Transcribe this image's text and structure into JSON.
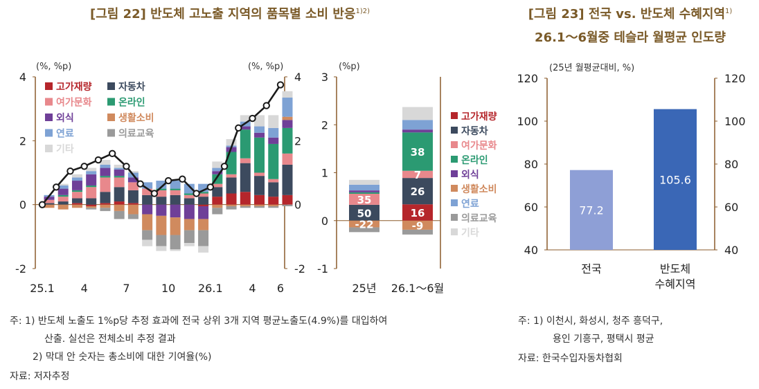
{
  "titles": {
    "fig22_main": "[그림 22] 반도체 고노출 지역의 품목별 소비 반응",
    "fig22_sup": "1)2)",
    "fig23_line1": "[그림 23] 전국 vs. 반도체 수혜지역",
    "fig23_sup": "1)",
    "fig23_line2": "26.1～6월중 테슬라 월평균 인도량"
  },
  "colors": {
    "고가재량": "#b5262b",
    "자동차": "#3c4a5e",
    "여가문화": "#e8888c",
    "온라인": "#2b9a72",
    "외식": "#6f3f98",
    "생활소비": "#d08a5e",
    "연료": "#7ea2d4",
    "의료교육": "#9a9a9a",
    "기타": "#d8d8d8",
    "line": "#1a1a1a",
    "national": "#8e9fd6",
    "semiconductor": "#3a67b6",
    "axis": "#8a5a2a"
  },
  "chart_data": [
    {
      "id": "fig22-left",
      "type": "bar",
      "stacked": true,
      "unit_left": "(%, %p)",
      "unit_right": "(%, %p)",
      "ylim": [
        -2,
        4
      ],
      "yticks": [
        "-2",
        "0",
        "2",
        "4"
      ],
      "xlabels": [
        "25.1",
        "4",
        "7",
        "10",
        "26.1",
        "4",
        "6"
      ],
      "categories": [
        "25.1",
        "25.2",
        "25.3",
        "25.4",
        "25.5",
        "25.6",
        "25.7",
        "25.8",
        "25.9",
        "25.10",
        "25.11",
        "25.12",
        "26.1",
        "26.2",
        "26.3",
        "26.4",
        "26.5",
        "26.6"
      ],
      "series": [
        {
          "name": "고가재량",
          "values": [
            0.0,
            0.0,
            0.05,
            -0.05,
            0.05,
            0.1,
            0.05,
            0.0,
            0.0,
            0.0,
            0.0,
            -0.05,
            0.25,
            0.35,
            0.4,
            0.3,
            0.25,
            0.3
          ]
        },
        {
          "name": "자동차",
          "values": [
            0.05,
            0.1,
            0.15,
            0.2,
            0.35,
            0.45,
            0.4,
            0.3,
            0.25,
            0.3,
            0.2,
            0.25,
            0.3,
            0.5,
            0.9,
            0.6,
            0.45,
            0.95
          ]
        },
        {
          "name": "여가문화",
          "values": [
            0.1,
            0.15,
            0.2,
            0.35,
            0.45,
            0.3,
            0.25,
            0.2,
            0.2,
            0.15,
            0.1,
            0.1,
            0.1,
            0.1,
            0.15,
            0.1,
            0.1,
            0.35
          ]
        },
        {
          "name": "온라인",
          "values": [
            0.0,
            0.05,
            0.05,
            0.05,
            0.05,
            0.05,
            0.0,
            0.0,
            0.05,
            0.05,
            0.05,
            0.05,
            0.3,
            0.7,
            0.9,
            1.1,
            1.1,
            0.8
          ]
        },
        {
          "name": "외식",
          "values": [
            0.1,
            0.2,
            0.3,
            0.35,
            0.25,
            0.2,
            0.15,
            -0.3,
            -0.35,
            -0.4,
            -0.45,
            -0.4,
            0.1,
            0.15,
            0.1,
            0.15,
            0.2,
            0.25
          ]
        },
        {
          "name": "생활소비",
          "values": [
            -0.1,
            -0.15,
            -0.1,
            -0.05,
            -0.1,
            -0.2,
            -0.3,
            -0.5,
            -0.6,
            -0.55,
            -0.35,
            -0.35,
            -0.1,
            -0.05,
            -0.05,
            -0.05,
            -0.05,
            0.1
          ]
        },
        {
          "name": "연료",
          "values": [
            0.05,
            0.1,
            0.1,
            0.1,
            0.1,
            0.05,
            0.15,
            0.2,
            0.25,
            0.25,
            0.3,
            0.25,
            0.1,
            0.05,
            0.15,
            0.2,
            0.3,
            0.6
          ]
        },
        {
          "name": "의료교육",
          "values": [
            0.0,
            0.0,
            0.0,
            -0.05,
            -0.1,
            -0.25,
            -0.15,
            -0.3,
            -0.35,
            -0.45,
            -0.4,
            -0.5,
            -0.2,
            -0.1,
            -0.05,
            -0.05,
            -0.05,
            -0.05
          ]
        },
        {
          "name": "기타",
          "values": [
            0.0,
            0.05,
            0.1,
            0.1,
            0.15,
            0.1,
            0.05,
            -0.2,
            -0.15,
            -0.05,
            -0.1,
            -0.2,
            0.2,
            0.2,
            0.2,
            0.35,
            0.4,
            0.2
          ]
        }
      ],
      "line": {
        "name": "전체소비",
        "values": [
          0.0,
          0.55,
          1.05,
          1.2,
          1.4,
          1.6,
          1.2,
          0.65,
          0.35,
          0.75,
          0.8,
          0.35,
          0.55,
          1.2,
          2.4,
          2.7,
          3.1,
          3.75
        ]
      }
    },
    {
      "id": "fig22-right",
      "type": "bar",
      "stacked": true,
      "unit": "(%p)",
      "ylim": [
        -1,
        3
      ],
      "yticks": [
        "-1",
        "0",
        "1",
        "2",
        "3"
      ],
      "categories": [
        "25년",
        "26.1～6월"
      ],
      "series": [
        {
          "name": "고가재량",
          "values": [
            0.0,
            0.34
          ]
        },
        {
          "name": "자동차",
          "values": [
            0.33,
            0.55
          ]
        },
        {
          "name": "여가문화",
          "values": [
            0.23,
            0.15
          ]
        },
        {
          "name": "온라인",
          "values": [
            0.03,
            0.8
          ]
        },
        {
          "name": "외식",
          "values": [
            0.04,
            0.06
          ]
        },
        {
          "name": "생활소비",
          "values": [
            -0.14,
            -0.19
          ]
        },
        {
          "name": "연료",
          "values": [
            0.12,
            0.2
          ]
        },
        {
          "name": "의료교육",
          "values": [
            -0.1,
            -0.1
          ]
        },
        {
          "name": "기타",
          "values": [
            0.1,
            0.27
          ]
        }
      ],
      "labels": [
        [
          {
            "series": "자동차",
            "text": "50"
          },
          {
            "series": "여가문화",
            "text": "35"
          },
          {
            "series": "생활소비",
            "text": "-22"
          }
        ],
        [
          {
            "series": "고가재량",
            "text": "16"
          },
          {
            "series": "자동차",
            "text": "26"
          },
          {
            "series": "여가문화",
            "text": "7"
          },
          {
            "series": "온라인",
            "text": "38"
          },
          {
            "series": "생활소비",
            "text": "-9"
          }
        ]
      ]
    },
    {
      "id": "fig23",
      "type": "bar",
      "unit": "(25년 월평균대비, %)",
      "ylim": [
        40,
        120
      ],
      "yticks": [
        "40",
        "60",
        "80",
        "100",
        "120"
      ],
      "categories": [
        "전국",
        "반도체 수혜지역"
      ],
      "xlabels": [
        [
          "전국"
        ],
        [
          "반도체",
          "수혜지역"
        ]
      ],
      "values": [
        77.2,
        105.6
      ],
      "labels": [
        "77.2",
        "105.6"
      ]
    }
  ],
  "legend_left": {
    "items": [
      "고가재량",
      "자동차",
      "여가문화",
      "온라인",
      "외식",
      "생활소비",
      "연료",
      "의료교육",
      "기타"
    ]
  },
  "legend_right": {
    "items": [
      "고가재량",
      "자동차",
      "여가문화",
      "온라인",
      "외식",
      "생활소비",
      "연료",
      "의료교육",
      "기타"
    ]
  },
  "notes": {
    "n1": "주: 1) 반도체 노출도 1%p당 추정 효과에 전국 상위 3개 지역 평균노출도(4.9%)를 대입하여",
    "n1b": "산출. 실선은 전체소비 추정 결과",
    "n2": "2) 막대 안 숫자는 총소비에 대한 기여율(%)",
    "src": "자료: 저자추정",
    "r1": "주: 1) 이천시, 화성시, 청주 흥덕구,",
    "r1b": "용인 기흥구, 평택시 평균",
    "rsrc": "자료: 한국수입자동차협회"
  }
}
